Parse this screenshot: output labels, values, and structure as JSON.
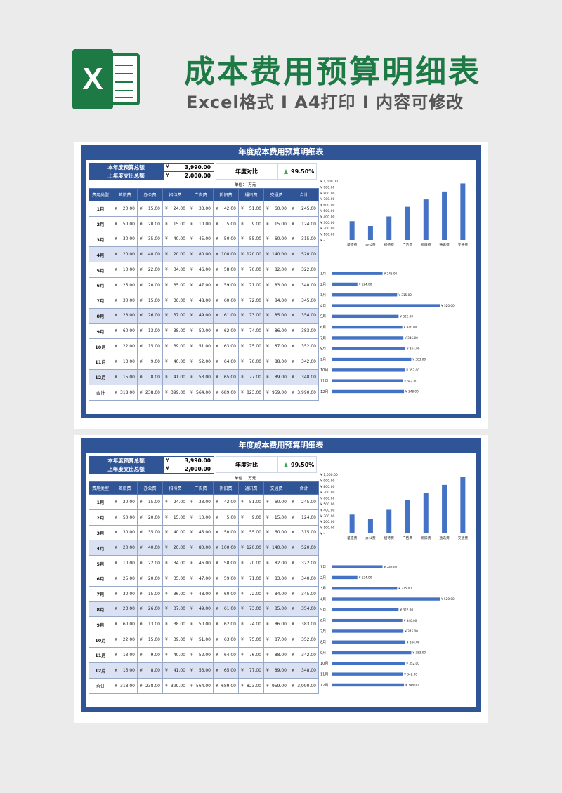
{
  "header": {
    "logo_letter": "X",
    "title": "成本费用预算明细表",
    "subtitle": "Excel格式 I A4打印 I 内容可修改"
  },
  "sheet": {
    "title": "年度成本费用预算明细表",
    "budget_label": "本年度预算总额",
    "budget_yen": "¥",
    "budget_value": "3,990.00",
    "spend_label": "上年度支出总额",
    "spend_yen": "¥",
    "spend_value": "2,000.00",
    "compare_label": "年度对比",
    "compare_value": "99.50%",
    "unit": "单位：　万元",
    "columns": [
      "费用类型",
      "差旅费",
      "办公费",
      "招待费",
      "广告费",
      "折旧费",
      "通讯费",
      "交通费",
      "合计"
    ],
    "rows": [
      {
        "month": "1月",
        "values": [
          "20.00",
          "15.00",
          "24.00",
          "33.00",
          "42.00",
          "51.00",
          "60.00",
          "245.00"
        ]
      },
      {
        "month": "2月",
        "values": [
          "50.00",
          "20.00",
          "15.00",
          "10.00",
          "5.00",
          "9.00",
          "15.00",
          "124.00"
        ]
      },
      {
        "month": "3月",
        "values": [
          "30.00",
          "35.00",
          "40.00",
          "45.00",
          "50.00",
          "55.00",
          "60.00",
          "315.00"
        ]
      },
      {
        "month": "4月",
        "values": [
          "20.00",
          "40.00",
          "20.00",
          "80.00",
          "100.00",
          "120.00",
          "140.00",
          "520.00"
        ]
      },
      {
        "month": "5月",
        "values": [
          "10.00",
          "22.00",
          "34.00",
          "46.00",
          "58.00",
          "70.00",
          "82.00",
          "322.00"
        ]
      },
      {
        "month": "6月",
        "values": [
          "25.00",
          "20.00",
          "35.00",
          "47.00",
          "59.00",
          "71.00",
          "83.00",
          "340.00"
        ]
      },
      {
        "month": "7月",
        "values": [
          "30.00",
          "15.00",
          "36.00",
          "48.00",
          "60.00",
          "72.00",
          "84.00",
          "345.00"
        ]
      },
      {
        "month": "8月",
        "values": [
          "23.00",
          "26.00",
          "37.00",
          "49.00",
          "61.00",
          "73.00",
          "85.00",
          "354.00"
        ]
      },
      {
        "month": "9月",
        "values": [
          "60.00",
          "13.00",
          "38.00",
          "50.00",
          "62.00",
          "74.00",
          "86.00",
          "383.00"
        ]
      },
      {
        "month": "10月",
        "values": [
          "22.00",
          "15.00",
          "39.00",
          "51.00",
          "63.00",
          "75.00",
          "87.00",
          "352.00"
        ]
      },
      {
        "month": "11月",
        "values": [
          "13.00",
          "9.00",
          "40.00",
          "52.00",
          "64.00",
          "76.00",
          "88.00",
          "342.00"
        ]
      },
      {
        "month": "12月",
        "values": [
          "15.00",
          "8.00",
          "41.00",
          "53.00",
          "65.00",
          "77.00",
          "89.00",
          "348.00"
        ]
      }
    ],
    "total_row": {
      "month": "合计",
      "values": [
        "318.00",
        "238.00",
        "399.00",
        "564.00",
        "689.00",
        "823.00",
        "959.00",
        "3,990.00"
      ]
    }
  },
  "chart_data": [
    {
      "type": "bar",
      "title": "",
      "categories": [
        "差旅费",
        "办公费",
        "招待费",
        "广告费",
        "折旧费",
        "通讯费",
        "交通费"
      ],
      "values": [
        318,
        238,
        399,
        564,
        689,
        823,
        959
      ],
      "ylim": [
        0,
        1000
      ],
      "yticks": [
        "¥ -",
        "¥ 100.00",
        "¥ 200.00",
        "¥ 300.00",
        "¥ 400.00",
        "¥ 500.00",
        "¥ 600.00",
        "¥ 700.00",
        "¥ 800.00",
        "¥ 900.00",
        "¥ 1,000.00"
      ],
      "grid": false,
      "color": "#4472c4"
    },
    {
      "type": "bar",
      "orientation": "horizontal",
      "title": "",
      "categories": [
        "1月",
        "2月",
        "3月",
        "4月",
        "5月",
        "6月",
        "7月",
        "8月",
        "9月",
        "10月",
        "11月",
        "12月"
      ],
      "values": [
        245,
        124,
        315,
        520,
        322,
        340,
        345,
        354,
        383,
        352,
        342,
        348
      ],
      "labels": [
        "¥ 245.00",
        "¥ 124.00",
        "¥ 315.00",
        "¥ 520.00",
        "¥ 322.00",
        "¥ 340.00",
        "¥ 345.00",
        "¥ 354.00",
        "¥ 383.00",
        "¥ 352.00",
        "¥ 342.00",
        "¥ 348.00"
      ],
      "grid": false,
      "color": "#4472c4"
    }
  ],
  "colors": {
    "brand_green": "#1d7a45",
    "sheet_blue": "#2f5597",
    "row_alt": "#d9e1f2",
    "bar_blue": "#4472c4",
    "arrow_green": "#3aa35b"
  }
}
